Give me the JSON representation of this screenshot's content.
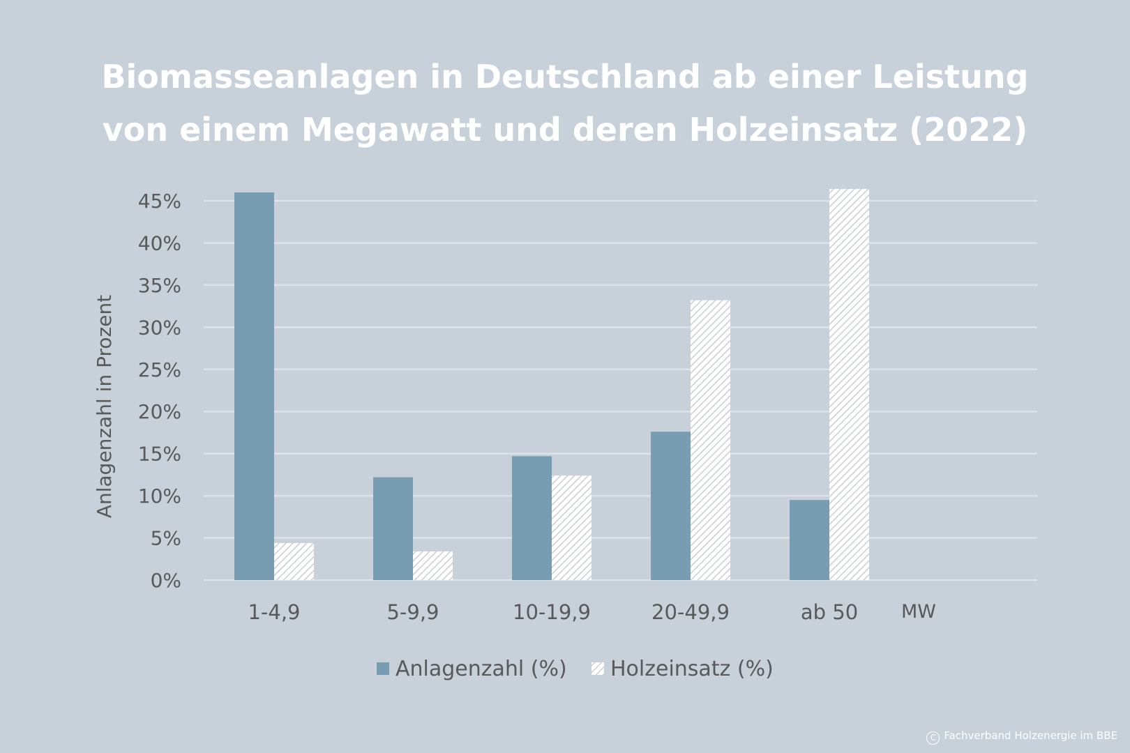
{
  "title": {
    "line1": "Biomasseanlagen in Deutschland ab einer Leistung",
    "line2": "von einem Megawatt und deren Holzeinsatz (2022)"
  },
  "credit": "Fachverband Holzenergie im BBE",
  "colors": {
    "background": "#c8d0da",
    "series_solid": "#789db3",
    "series_hatched_bg": "#ffffff",
    "series_hatched_line": "#c9cdd3",
    "gridline": "#dde2e8",
    "text": "#595959",
    "title": "#ffffff"
  },
  "chart_data": {
    "type": "bar",
    "title": "Biomasseanlagen in Deutschland ab einer Leistung von einem Megawatt und deren Holzeinsatz (2022)",
    "xlabel": "",
    "x_unit": "MW",
    "ylabel": "Anlagenzahl in Prozent",
    "ylim": [
      0,
      45
    ],
    "yticks": [
      0,
      5,
      10,
      15,
      20,
      25,
      30,
      35,
      40,
      45
    ],
    "ytick_labels": [
      "0%",
      "5%",
      "10%",
      "15%",
      "20%",
      "25%",
      "30%",
      "35%",
      "40%",
      "45%"
    ],
    "grid": true,
    "legend_position": "bottom",
    "categories": [
      "1-4,9",
      "5-9,9",
      "10-19,9",
      "20-49,9",
      "ab 50"
    ],
    "series": [
      {
        "name": "Anlagenzahl (%)",
        "style": "solid",
        "values": [
          46,
          12.2,
          14.7,
          17.6,
          9.5
        ]
      },
      {
        "name": "Holzeinsatz (%)",
        "style": "hatched",
        "values": [
          4.4,
          3.4,
          12.4,
          33.2,
          46.4
        ]
      }
    ]
  }
}
